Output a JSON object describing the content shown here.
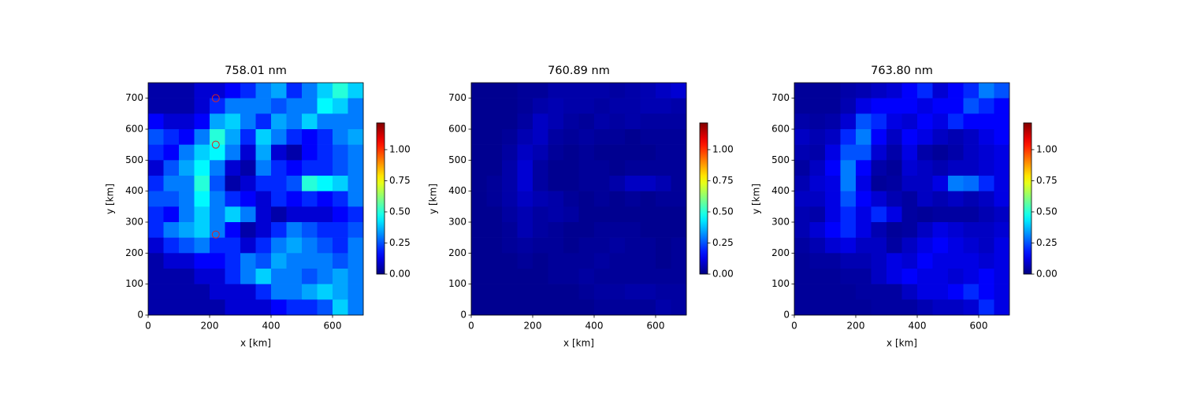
{
  "chart_data": [
    {
      "type": "heatmap",
      "title": "758.01 nm",
      "xlabel": "x [km]",
      "ylabel": "y [km]",
      "colormap": "jet",
      "x": [
        25,
        75,
        125,
        175,
        225,
        275,
        325,
        375,
        425,
        475,
        525,
        575,
        625,
        675
      ],
      "y": [
        725,
        675,
        625,
        575,
        525,
        475,
        425,
        375,
        325,
        275,
        225,
        175,
        125,
        75,
        25
      ],
      "values": [
        [
          0.05,
          0.05,
          0.05,
          0.1,
          0.1,
          0.15,
          0.2,
          0.3,
          0.35,
          0.2,
          0.3,
          0.4,
          0.5,
          0.4
        ],
        [
          0.05,
          0.05,
          0.05,
          0.1,
          0.2,
          0.3,
          0.3,
          0.3,
          0.25,
          0.3,
          0.3,
          0.45,
          0.4,
          0.3
        ],
        [
          0.15,
          0.1,
          0.1,
          0.15,
          0.35,
          0.4,
          0.3,
          0.2,
          0.35,
          0.3,
          0.4,
          0.3,
          0.3,
          0.3
        ],
        [
          0.25,
          0.2,
          0.15,
          0.3,
          0.5,
          0.35,
          0.2,
          0.4,
          0.3,
          0.2,
          0.15,
          0.2,
          0.3,
          0.35
        ],
        [
          0.2,
          0.15,
          0.3,
          0.4,
          0.45,
          0.3,
          0.1,
          0.35,
          0.1,
          0.05,
          0.15,
          0.2,
          0.25,
          0.3
        ],
        [
          0.1,
          0.25,
          0.35,
          0.45,
          0.3,
          0.1,
          0.05,
          0.3,
          0.2,
          0.15,
          0.2,
          0.2,
          0.25,
          0.3
        ],
        [
          0.2,
          0.3,
          0.3,
          0.5,
          0.25,
          0.05,
          0.1,
          0.2,
          0.2,
          0.25,
          0.5,
          0.45,
          0.4,
          0.3
        ],
        [
          0.25,
          0.25,
          0.3,
          0.45,
          0.3,
          0.2,
          0.15,
          0.1,
          0.2,
          0.15,
          0.2,
          0.15,
          0.2,
          0.3
        ],
        [
          0.2,
          0.15,
          0.3,
          0.4,
          0.3,
          0.4,
          0.3,
          0.1,
          0.05,
          0.1,
          0.1,
          0.1,
          0.15,
          0.2
        ],
        [
          0.2,
          0.3,
          0.35,
          0.4,
          0.3,
          0.15,
          0.05,
          0.1,
          0.2,
          0.3,
          0.25,
          0.2,
          0.2,
          0.25
        ],
        [
          0.1,
          0.2,
          0.25,
          0.3,
          0.2,
          0.2,
          0.1,
          0.2,
          0.3,
          0.35,
          0.3,
          0.25,
          0.2,
          0.3
        ],
        [
          0.05,
          0.1,
          0.1,
          0.15,
          0.15,
          0.2,
          0.3,
          0.25,
          0.35,
          0.3,
          0.3,
          0.3,
          0.25,
          0.3
        ],
        [
          0.05,
          0.05,
          0.05,
          0.1,
          0.1,
          0.2,
          0.3,
          0.4,
          0.3,
          0.3,
          0.25,
          0.3,
          0.35,
          0.3
        ],
        [
          0.05,
          0.05,
          0.05,
          0.05,
          0.1,
          0.1,
          0.1,
          0.2,
          0.3,
          0.3,
          0.35,
          0.4,
          0.35,
          0.3
        ],
        [
          0.05,
          0.05,
          0.05,
          0.05,
          0.05,
          0.1,
          0.1,
          0.1,
          0.15,
          0.2,
          0.2,
          0.25,
          0.4,
          0.3
        ]
      ],
      "xlim": [
        0,
        700
      ],
      "ylim": [
        0,
        750
      ],
      "xticks": [
        0,
        200,
        400,
        600
      ],
      "yticks": [
        0,
        100,
        200,
        300,
        400,
        500,
        600,
        700
      ],
      "clim": [
        0,
        1.215
      ],
      "cticks": [
        {
          "value": 0,
          "label": "0.00"
        },
        0.25,
        {
          "value": 0.5,
          "label": "0.50"
        },
        0.75,
        {
          "value": 1,
          "label": "1.00"
        }
      ],
      "markers": {
        "x": [
          220,
          220,
          220
        ],
        "y": [
          700,
          550,
          260
        ],
        "color": "#d62728"
      }
    },
    {
      "type": "heatmap",
      "title": "760.89 nm",
      "xlabel": "x [km]",
      "ylabel": "y [km]",
      "colormap": "jet",
      "x": [
        25,
        75,
        125,
        175,
        225,
        275,
        325,
        375,
        425,
        475,
        525,
        575,
        625,
        675
      ],
      "y": [
        725,
        675,
        625,
        575,
        525,
        475,
        425,
        375,
        325,
        275,
        225,
        175,
        125,
        75,
        25
      ],
      "values": [
        [
          0.02,
          0.02,
          0.02,
          0.03,
          0.03,
          0.05,
          0.05,
          0.05,
          0.05,
          0.04,
          0.05,
          0.06,
          0.08,
          0.1
        ],
        [
          0.02,
          0.02,
          0.02,
          0.03,
          0.05,
          0.06,
          0.05,
          0.05,
          0.04,
          0.05,
          0.05,
          0.06,
          0.06,
          0.05
        ],
        [
          0.02,
          0.02,
          0.02,
          0.04,
          0.08,
          0.06,
          0.04,
          0.03,
          0.05,
          0.04,
          0.05,
          0.04,
          0.04,
          0.04
        ],
        [
          0.02,
          0.02,
          0.03,
          0.06,
          0.08,
          0.04,
          0.03,
          0.04,
          0.03,
          0.03,
          0.02,
          0.03,
          0.03,
          0.03
        ],
        [
          0.02,
          0.02,
          0.04,
          0.08,
          0.06,
          0.03,
          0.02,
          0.03,
          0.02,
          0.02,
          0.02,
          0.02,
          0.03,
          0.03
        ],
        [
          0.02,
          0.02,
          0.05,
          0.1,
          0.04,
          0.02,
          0.02,
          0.03,
          0.03,
          0.02,
          0.03,
          0.03,
          0.03,
          0.03
        ],
        [
          0.02,
          0.03,
          0.05,
          0.1,
          0.04,
          0.02,
          0.02,
          0.03,
          0.03,
          0.05,
          0.08,
          0.08,
          0.06,
          0.03
        ],
        [
          0.02,
          0.03,
          0.05,
          0.08,
          0.06,
          0.05,
          0.03,
          0.02,
          0.03,
          0.02,
          0.03,
          0.02,
          0.03,
          0.03
        ],
        [
          0.02,
          0.02,
          0.04,
          0.06,
          0.04,
          0.05,
          0.04,
          0.02,
          0.02,
          0.02,
          0.02,
          0.02,
          0.02,
          0.02
        ],
        [
          0.02,
          0.02,
          0.03,
          0.06,
          0.04,
          0.03,
          0.02,
          0.02,
          0.03,
          0.03,
          0.03,
          0.02,
          0.02,
          0.02
        ],
        [
          0.02,
          0.02,
          0.03,
          0.04,
          0.03,
          0.03,
          0.02,
          0.03,
          0.03,
          0.04,
          0.03,
          0.03,
          0.02,
          0.03
        ],
        [
          0.02,
          0.02,
          0.02,
          0.03,
          0.02,
          0.03,
          0.03,
          0.03,
          0.04,
          0.03,
          0.03,
          0.03,
          0.02,
          0.03
        ],
        [
          0.02,
          0.02,
          0.02,
          0.02,
          0.02,
          0.03,
          0.03,
          0.04,
          0.03,
          0.03,
          0.03,
          0.03,
          0.03,
          0.03
        ],
        [
          0.02,
          0.02,
          0.02,
          0.02,
          0.02,
          0.02,
          0.02,
          0.03,
          0.04,
          0.04,
          0.05,
          0.05,
          0.04,
          0.04
        ],
        [
          0.02,
          0.02,
          0.02,
          0.02,
          0.02,
          0.02,
          0.02,
          0.02,
          0.03,
          0.03,
          0.03,
          0.03,
          0.05,
          0.04
        ]
      ],
      "xlim": [
        0,
        700
      ],
      "ylim": [
        0,
        750
      ],
      "xticks": [
        0,
        200,
        400,
        600
      ],
      "yticks": [
        0,
        100,
        200,
        300,
        400,
        500,
        600,
        700
      ],
      "clim": [
        0,
        1.215
      ],
      "cticks": [
        {
          "value": 0,
          "label": "0.00"
        },
        0.25,
        {
          "value": 0.5,
          "label": "0.50"
        },
        0.75,
        {
          "value": 1,
          "label": "1.00"
        }
      ]
    },
    {
      "type": "heatmap",
      "title": "763.80 nm",
      "xlabel": "x [km]",
      "ylabel": "y [km]",
      "colormap": "jet",
      "x": [
        25,
        75,
        125,
        175,
        225,
        275,
        325,
        375,
        425,
        475,
        525,
        575,
        625,
        675
      ],
      "y": [
        725,
        675,
        625,
        575,
        525,
        475,
        425,
        375,
        325,
        275,
        225,
        175,
        125,
        75,
        25
      ],
      "values": [
        [
          0.03,
          0.03,
          0.03,
          0.05,
          0.06,
          0.08,
          0.1,
          0.15,
          0.2,
          0.1,
          0.15,
          0.2,
          0.3,
          0.25
        ],
        [
          0.03,
          0.03,
          0.03,
          0.06,
          0.12,
          0.15,
          0.15,
          0.15,
          0.12,
          0.15,
          0.15,
          0.25,
          0.2,
          0.15
        ],
        [
          0.05,
          0.04,
          0.05,
          0.1,
          0.25,
          0.2,
          0.12,
          0.1,
          0.15,
          0.12,
          0.2,
          0.15,
          0.15,
          0.15
        ],
        [
          0.08,
          0.06,
          0.08,
          0.2,
          0.3,
          0.15,
          0.08,
          0.15,
          0.12,
          0.08,
          0.06,
          0.08,
          0.12,
          0.15
        ],
        [
          0.06,
          0.05,
          0.12,
          0.25,
          0.25,
          0.1,
          0.05,
          0.12,
          0.05,
          0.03,
          0.05,
          0.08,
          0.1,
          0.12
        ],
        [
          0.04,
          0.08,
          0.15,
          0.3,
          0.15,
          0.05,
          0.03,
          0.1,
          0.08,
          0.06,
          0.08,
          0.08,
          0.1,
          0.12
        ],
        [
          0.06,
          0.1,
          0.12,
          0.3,
          0.12,
          0.03,
          0.04,
          0.08,
          0.08,
          0.12,
          0.3,
          0.28,
          0.2,
          0.12
        ],
        [
          0.08,
          0.08,
          0.12,
          0.25,
          0.15,
          0.1,
          0.06,
          0.04,
          0.08,
          0.06,
          0.08,
          0.06,
          0.08,
          0.12
        ],
        [
          0.06,
          0.05,
          0.12,
          0.2,
          0.12,
          0.2,
          0.12,
          0.04,
          0.03,
          0.04,
          0.04,
          0.04,
          0.06,
          0.08
        ],
        [
          0.06,
          0.1,
          0.15,
          0.2,
          0.12,
          0.06,
          0.03,
          0.04,
          0.08,
          0.12,
          0.1,
          0.08,
          0.08,
          0.1
        ],
        [
          0.04,
          0.06,
          0.1,
          0.12,
          0.08,
          0.08,
          0.04,
          0.08,
          0.12,
          0.15,
          0.12,
          0.1,
          0.08,
          0.12
        ],
        [
          0.03,
          0.04,
          0.04,
          0.06,
          0.06,
          0.08,
          0.12,
          0.1,
          0.15,
          0.12,
          0.12,
          0.12,
          0.1,
          0.12
        ],
        [
          0.03,
          0.03,
          0.03,
          0.04,
          0.04,
          0.08,
          0.12,
          0.15,
          0.12,
          0.12,
          0.1,
          0.12,
          0.15,
          0.12
        ],
        [
          0.03,
          0.03,
          0.03,
          0.03,
          0.04,
          0.04,
          0.04,
          0.08,
          0.12,
          0.12,
          0.15,
          0.2,
          0.15,
          0.12
        ],
        [
          0.03,
          0.03,
          0.03,
          0.03,
          0.03,
          0.04,
          0.04,
          0.04,
          0.06,
          0.08,
          0.08,
          0.1,
          0.2,
          0.12
        ]
      ],
      "xlim": [
        0,
        700
      ],
      "ylim": [
        0,
        750
      ],
      "xticks": [
        0,
        200,
        400,
        600
      ],
      "yticks": [
        0,
        100,
        200,
        300,
        400,
        500,
        600,
        700
      ],
      "clim": [
        0,
        1.215
      ],
      "cticks": [
        {
          "value": 0,
          "label": "0.00"
        },
        0.25,
        {
          "value": 0.5,
          "label": "0.50"
        },
        0.75,
        {
          "value": 1,
          "label": "1.00"
        }
      ]
    }
  ]
}
